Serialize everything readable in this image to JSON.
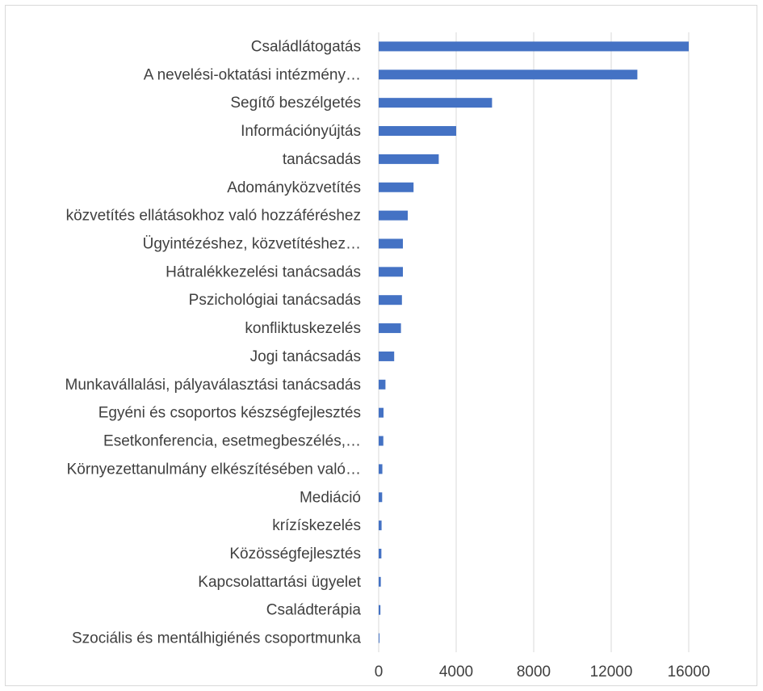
{
  "chart_data": {
    "type": "bar",
    "orientation": "horizontal",
    "title": "",
    "xlabel": "",
    "ylabel": "",
    "categories": [
      "Családlátogatás",
      "A nevelési-oktatási intézmény…",
      "Segítő beszélgetés",
      "Információnyújtás",
      "tanácsadás",
      "Adományközvetítés",
      "közvetítés ellátásokhoz való hozzáféréshez",
      "Ügyintézéshez, közvetítéshez…",
      "Hátralékkezelési tanácsadás",
      "Pszichológiai tanácsadás",
      "konfliktuskezelés",
      "Jogi tanácsadás",
      "Munkavállalási, pályaválasztási  tanácsadás",
      "Egyéni és csoportos készségfejlesztés",
      "Esetkonferencia, esetmegbeszélés,…",
      "Környezettanulmány elkészítésében való…",
      "Mediáció",
      "krízískezelés",
      "Közösségfejlesztés",
      "Kapcsolattartási ügyelet",
      "Családterápia",
      "Szociális és mentálhigiénés csoportmunka"
    ],
    "values": [
      16000,
      13350,
      5850,
      4000,
      3100,
      1800,
      1500,
      1250,
      1250,
      1200,
      1150,
      800,
      350,
      250,
      240,
      190,
      180,
      150,
      140,
      110,
      90,
      40
    ],
    "xlim": [
      0,
      18000
    ],
    "xticks": [
      "0",
      "4000",
      "8000",
      "12000",
      "16000"
    ],
    "xtick_values": [
      0,
      4000,
      8000,
      12000,
      16000
    ],
    "grid": true,
    "legend": "none",
    "bar_color": "#4472c4",
    "grid_color": "#d9d9d9",
    "text_color": "#404040"
  }
}
